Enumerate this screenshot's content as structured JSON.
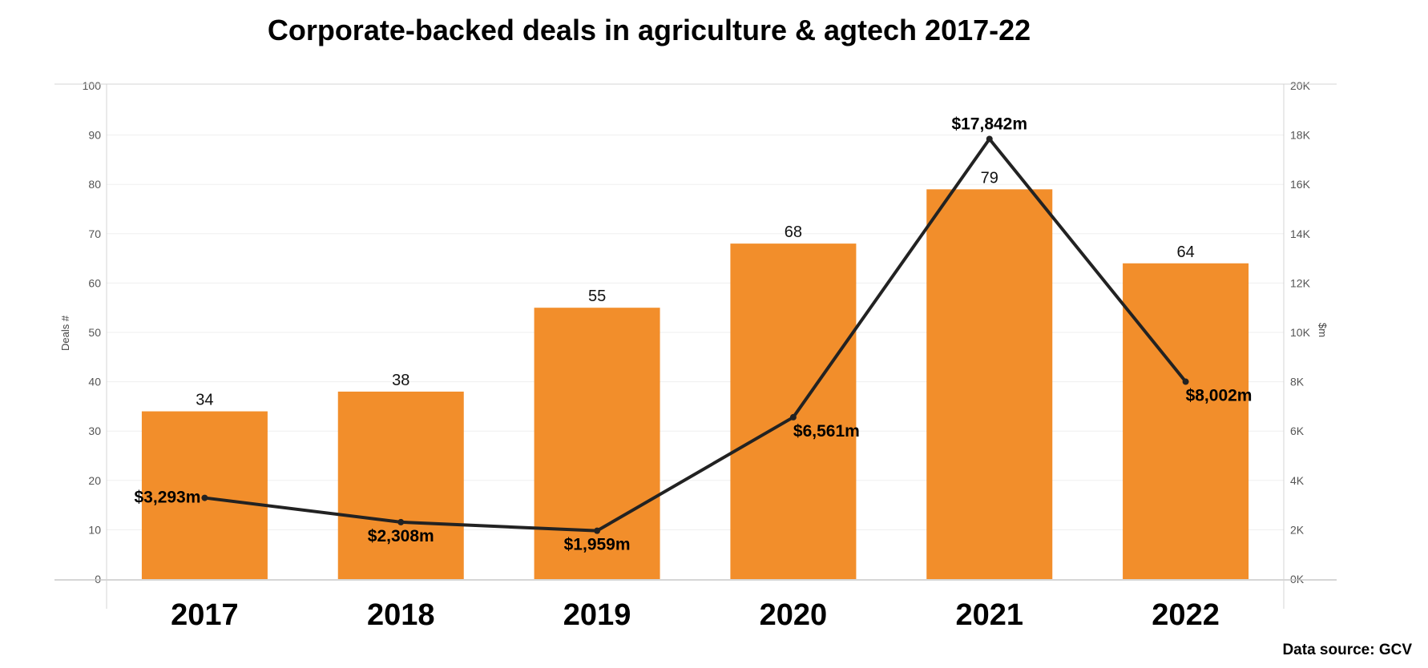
{
  "chart_data": {
    "type": "bar",
    "title": "Corporate-backed deals in agriculture & agtech 2017-22",
    "categories": [
      "2017",
      "2018",
      "2019",
      "2020",
      "2021",
      "2022"
    ],
    "series": [
      {
        "name": "",
        "kind": "bar",
        "axis": "left",
        "values": [
          34,
          38,
          55,
          68,
          79,
          64
        ]
      },
      {
        "name": "",
        "kind": "line",
        "axis": "right",
        "values": [
          3293,
          2308,
          1959,
          6561,
          17842,
          8002
        ],
        "labels": [
          "$3,293m",
          "$2,308m",
          "$1,959m",
          "$6,561m",
          "$17,842m",
          "$8,002m"
        ]
      }
    ],
    "ylabel_left": "Deals #",
    "ylabel_right": "$m",
    "ylim_left": [
      0,
      100
    ],
    "ylim_right": [
      0,
      20000
    ],
    "yticks_left": [
      "0",
      "10",
      "20",
      "30",
      "40",
      "50",
      "60",
      "70",
      "80",
      "90",
      "100"
    ],
    "yticks_right": [
      "0K",
      "2K",
      "4K",
      "6K",
      "8K",
      "10K",
      "12K",
      "14K",
      "16K",
      "18K",
      "20K"
    ],
    "grid": true,
    "bar_color": "#f28e2b",
    "line_color": "#222222",
    "source": "Data source: GCV"
  }
}
